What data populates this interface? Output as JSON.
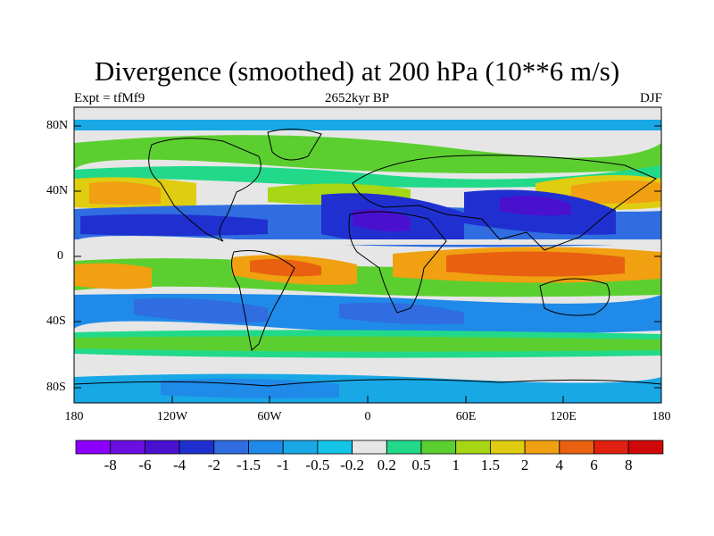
{
  "title": "Divergence (smoothed) at 200 hPa (10**6 m/s)",
  "subtitle_left": "Expt = tfMf9",
  "subtitle_center": "2652kyr BP",
  "subtitle_right": "DJF",
  "lat_labels": [
    "80N",
    "40N",
    "0",
    "40S",
    "80S"
  ],
  "lon_labels": [
    "180",
    "120W",
    "60W",
    "0",
    "60E",
    "120E",
    "180"
  ],
  "colorbar": {
    "labels": [
      "-8",
      "-6",
      "-4",
      "-2",
      "-1.5",
      "-1",
      "-0.5",
      "-0.2",
      "0.2",
      "0.5",
      "1",
      "1.5",
      "2",
      "4",
      "6",
      "8"
    ],
    "colors": [
      "#8b00ff",
      "#6a0fe0",
      "#4a10d0",
      "#2030d0",
      "#2f6de0",
      "#1f8ae8",
      "#19a8e6",
      "#14c4e6",
      "#e6e6e6",
      "#22d98a",
      "#5ccf30",
      "#a6d614",
      "#e0cc10",
      "#f0a010",
      "#e86010",
      "#e02010",
      "#d00808"
    ]
  },
  "map_data": {
    "variable": "Divergence (smoothed)",
    "level": "200 hPa",
    "units": "10**6 m/s",
    "season": "DJF",
    "experiment": "tfMf9",
    "time": "2652kyr BP",
    "lon_range": [
      -180,
      180
    ],
    "lat_range": [
      -90,
      90
    ]
  }
}
